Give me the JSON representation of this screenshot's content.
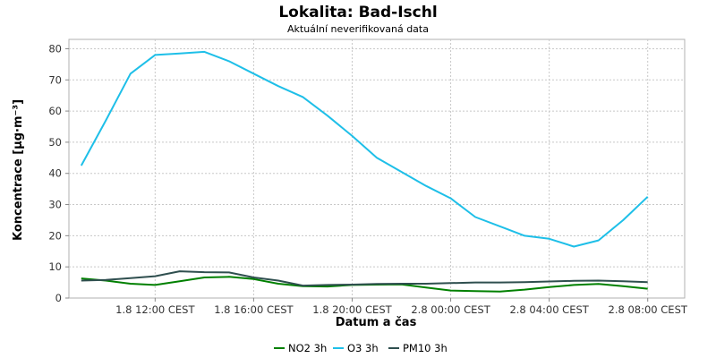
{
  "chart_data": {
    "type": "line",
    "title": "Lokalita: Bad-Ischl",
    "subtitle": "Aktuální neverifikovaná data",
    "xlabel": "Datum a čas",
    "ylabel": "Koncentrace [µg·m⁻³]",
    "ylim": [
      0,
      83
    ],
    "yticks": [
      0,
      10,
      20,
      30,
      40,
      50,
      60,
      70,
      80
    ],
    "xlim": [
      "2024-08-01T08:30",
      "2024-08-02T09:30"
    ],
    "xticks": [
      {
        "t": "2024-08-01T12:00",
        "label": "1.8 12:00 CEST"
      },
      {
        "t": "2024-08-01T16:00",
        "label": "1.8 16:00 CEST"
      },
      {
        "t": "2024-08-01T20:00",
        "label": "1.8 20:00 CEST"
      },
      {
        "t": "2024-08-02T00:00",
        "label": "2.8 00:00 CEST"
      },
      {
        "t": "2024-08-02T04:00",
        "label": "2.8 04:00 CEST"
      },
      {
        "t": "2024-08-02T08:00",
        "label": "2.8 08:00 CEST"
      }
    ],
    "x": [
      "2024-08-01T09:00",
      "2024-08-01T10:00",
      "2024-08-01T11:00",
      "2024-08-01T12:00",
      "2024-08-01T13:00",
      "2024-08-01T14:00",
      "2024-08-01T15:00",
      "2024-08-01T16:00",
      "2024-08-01T17:00",
      "2024-08-01T18:00",
      "2024-08-01T19:00",
      "2024-08-01T20:00",
      "2024-08-01T21:00",
      "2024-08-01T22:00",
      "2024-08-01T23:00",
      "2024-08-02T00:00",
      "2024-08-02T01:00",
      "2024-08-02T02:00",
      "2024-08-02T03:00",
      "2024-08-02T04:00",
      "2024-08-02T05:00",
      "2024-08-02T06:00",
      "2024-08-02T07:00",
      "2024-08-02T08:00"
    ],
    "series": [
      {
        "name": "NO2 3h",
        "color": "#008000",
        "values": [
          6.3,
          5.6,
          4.6,
          4.2,
          5.4,
          6.6,
          6.8,
          6.1,
          4.6,
          3.8,
          3.7,
          4.2,
          4.3,
          4.4,
          3.4,
          2.4,
          2.2,
          2.1,
          2.7,
          3.5,
          4.2,
          4.5,
          3.8,
          3.0
        ]
      },
      {
        "name": "O3 3h",
        "color": "#1ebfe8",
        "values": [
          42.5,
          57.0,
          72.0,
          78.0,
          78.5,
          79.0,
          76.0,
          72.0,
          68.0,
          64.5,
          58.5,
          52.0,
          45.0,
          40.5,
          36.0,
          32.0,
          26.0,
          23.0,
          20.0,
          19.0,
          16.5,
          18.5,
          25.0,
          32.5
        ]
      },
      {
        "name": "PM10 3h",
        "color": "#2f4f4f",
        "values": [
          5.6,
          5.8,
          6.4,
          7.0,
          8.6,
          8.3,
          8.2,
          6.6,
          5.6,
          4.0,
          4.2,
          4.3,
          4.5,
          4.6,
          4.6,
          4.8,
          5.0,
          5.0,
          5.1,
          5.3,
          5.5,
          5.6,
          5.4,
          5.1
        ]
      }
    ],
    "grid": true,
    "legend_position": "bottom-center"
  }
}
